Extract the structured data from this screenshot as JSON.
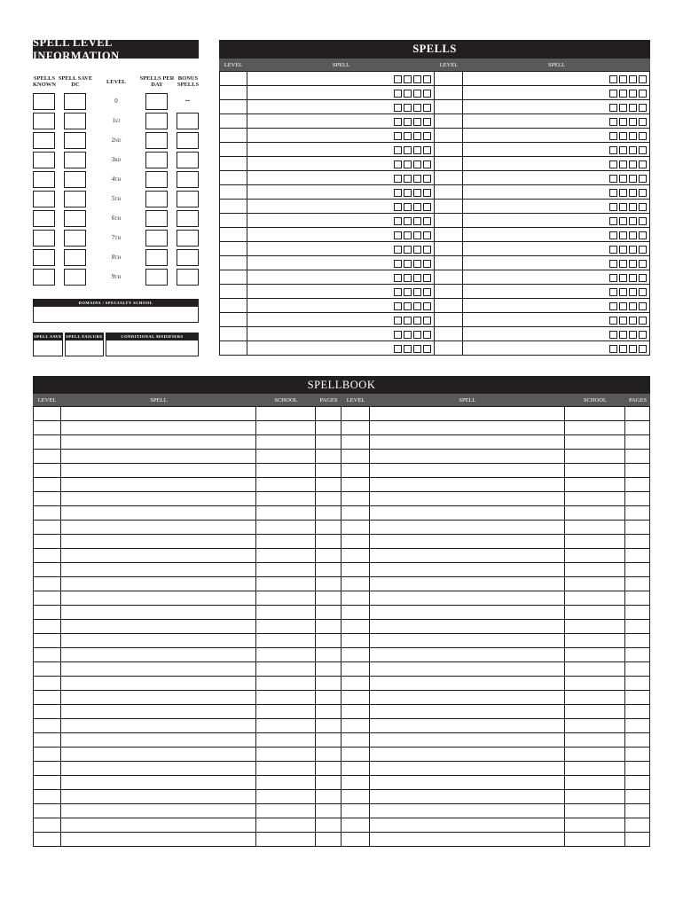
{
  "spell_level_info": {
    "title": "SPELL LEVEL INFORMATION",
    "columns": [
      "SPELLS KNOWN",
      "SPELL SAVE DC",
      "LEVEL",
      "SPELLS PER DAY",
      "BONUS SPELLS"
    ],
    "levels": [
      "0",
      "1st",
      "2nd",
      "3rd",
      "4th",
      "5th",
      "6th",
      "7th",
      "8th",
      "9th"
    ],
    "level_0_bonus": "–",
    "domains": "DOMAINS / SPECIALTY SCHOOL",
    "modifiers": [
      "SPELL SAVE",
      "SPELL FAILURE",
      "CONDITIONAL MODIFIERS"
    ]
  },
  "spells": {
    "title": "SPELLS",
    "columns": [
      "LEVEL",
      "SPELL",
      "LEVEL",
      "SPELL"
    ]
  },
  "spellbook": {
    "title": "SPELLBOOK",
    "columns": [
      "LEVEL",
      "SPELL",
      "SCHOOL",
      "PAGES",
      "LEVEL",
      "SPELL",
      "SCHOOL",
      "PAGES"
    ]
  }
}
